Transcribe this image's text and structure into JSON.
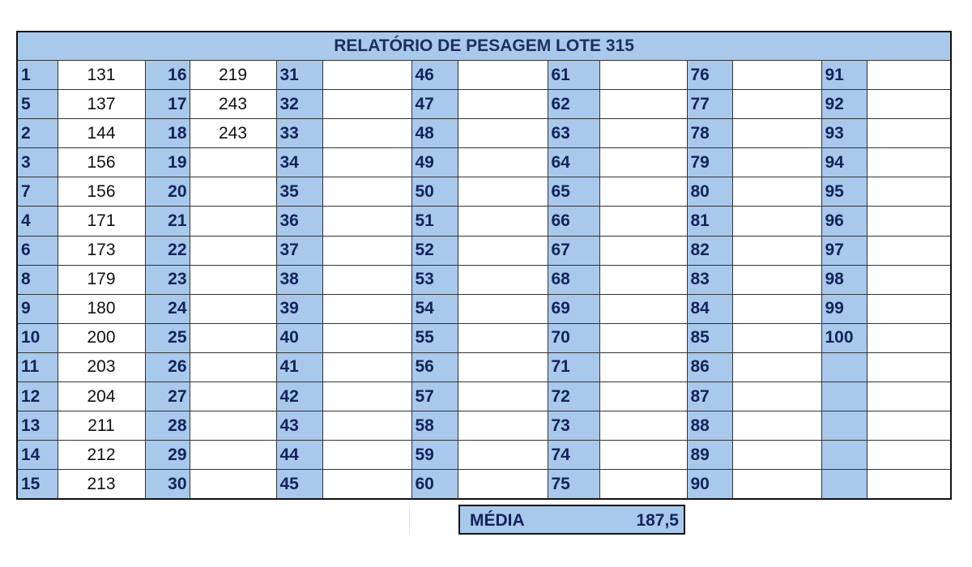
{
  "title": "RELATÓRIO DE PESAGEM LOTE 315",
  "rows": [
    [
      [
        "1",
        "131"
      ],
      [
        "16",
        "219"
      ],
      [
        "31",
        ""
      ],
      [
        "46",
        ""
      ],
      [
        "61",
        ""
      ],
      [
        "76",
        ""
      ],
      [
        "91",
        ""
      ]
    ],
    [
      [
        "5",
        "137"
      ],
      [
        "17",
        "243"
      ],
      [
        "32",
        ""
      ],
      [
        "47",
        ""
      ],
      [
        "62",
        ""
      ],
      [
        "77",
        ""
      ],
      [
        "92",
        ""
      ]
    ],
    [
      [
        "2",
        "144"
      ],
      [
        "18",
        "243"
      ],
      [
        "33",
        ""
      ],
      [
        "48",
        ""
      ],
      [
        "63",
        ""
      ],
      [
        "78",
        ""
      ],
      [
        "93",
        ""
      ]
    ],
    [
      [
        "3",
        "156"
      ],
      [
        "19",
        ""
      ],
      [
        "34",
        ""
      ],
      [
        "49",
        ""
      ],
      [
        "64",
        ""
      ],
      [
        "79",
        ""
      ],
      [
        "94",
        ""
      ]
    ],
    [
      [
        "7",
        "156"
      ],
      [
        "20",
        ""
      ],
      [
        "35",
        ""
      ],
      [
        "50",
        ""
      ],
      [
        "65",
        ""
      ],
      [
        "80",
        ""
      ],
      [
        "95",
        ""
      ]
    ],
    [
      [
        "4",
        "171"
      ],
      [
        "21",
        ""
      ],
      [
        "36",
        ""
      ],
      [
        "51",
        ""
      ],
      [
        "66",
        ""
      ],
      [
        "81",
        ""
      ],
      [
        "96",
        ""
      ]
    ],
    [
      [
        "6",
        "173"
      ],
      [
        "22",
        ""
      ],
      [
        "37",
        ""
      ],
      [
        "52",
        ""
      ],
      [
        "67",
        ""
      ],
      [
        "82",
        ""
      ],
      [
        "97",
        ""
      ]
    ],
    [
      [
        "8",
        "179"
      ],
      [
        "23",
        ""
      ],
      [
        "38",
        ""
      ],
      [
        "53",
        ""
      ],
      [
        "68",
        ""
      ],
      [
        "83",
        ""
      ],
      [
        "98",
        ""
      ]
    ],
    [
      [
        "9",
        "180"
      ],
      [
        "24",
        ""
      ],
      [
        "39",
        ""
      ],
      [
        "54",
        ""
      ],
      [
        "69",
        ""
      ],
      [
        "84",
        ""
      ],
      [
        "99",
        ""
      ]
    ],
    [
      [
        "10",
        "200"
      ],
      [
        "25",
        ""
      ],
      [
        "40",
        ""
      ],
      [
        "55",
        ""
      ],
      [
        "70",
        ""
      ],
      [
        "85",
        ""
      ],
      [
        "100",
        ""
      ]
    ],
    [
      [
        "11",
        "203"
      ],
      [
        "26",
        ""
      ],
      [
        "41",
        ""
      ],
      [
        "56",
        ""
      ],
      [
        "71",
        ""
      ],
      [
        "86",
        ""
      ],
      [
        "",
        ""
      ]
    ],
    [
      [
        "12",
        "204"
      ],
      [
        "27",
        ""
      ],
      [
        "42",
        ""
      ],
      [
        "57",
        ""
      ],
      [
        "72",
        ""
      ],
      [
        "87",
        ""
      ],
      [
        "",
        ""
      ]
    ],
    [
      [
        "13",
        "211"
      ],
      [
        "28",
        ""
      ],
      [
        "43",
        ""
      ],
      [
        "58",
        ""
      ],
      [
        "73",
        ""
      ],
      [
        "88",
        ""
      ],
      [
        "",
        ""
      ]
    ],
    [
      [
        "14",
        "212"
      ],
      [
        "29",
        ""
      ],
      [
        "44",
        ""
      ],
      [
        "59",
        ""
      ],
      [
        "74",
        ""
      ],
      [
        "89",
        ""
      ],
      [
        "",
        ""
      ]
    ],
    [
      [
        "15",
        "213"
      ],
      [
        "30",
        ""
      ],
      [
        "45",
        ""
      ],
      [
        "60",
        ""
      ],
      [
        "75",
        ""
      ],
      [
        "90",
        ""
      ],
      [
        "",
        ""
      ]
    ]
  ],
  "summary": {
    "label": "MÉDIA",
    "value": "187,5"
  },
  "colors": {
    "header_fill": "#a9c9ec",
    "number_text": "#12235a",
    "border": "#111111"
  }
}
